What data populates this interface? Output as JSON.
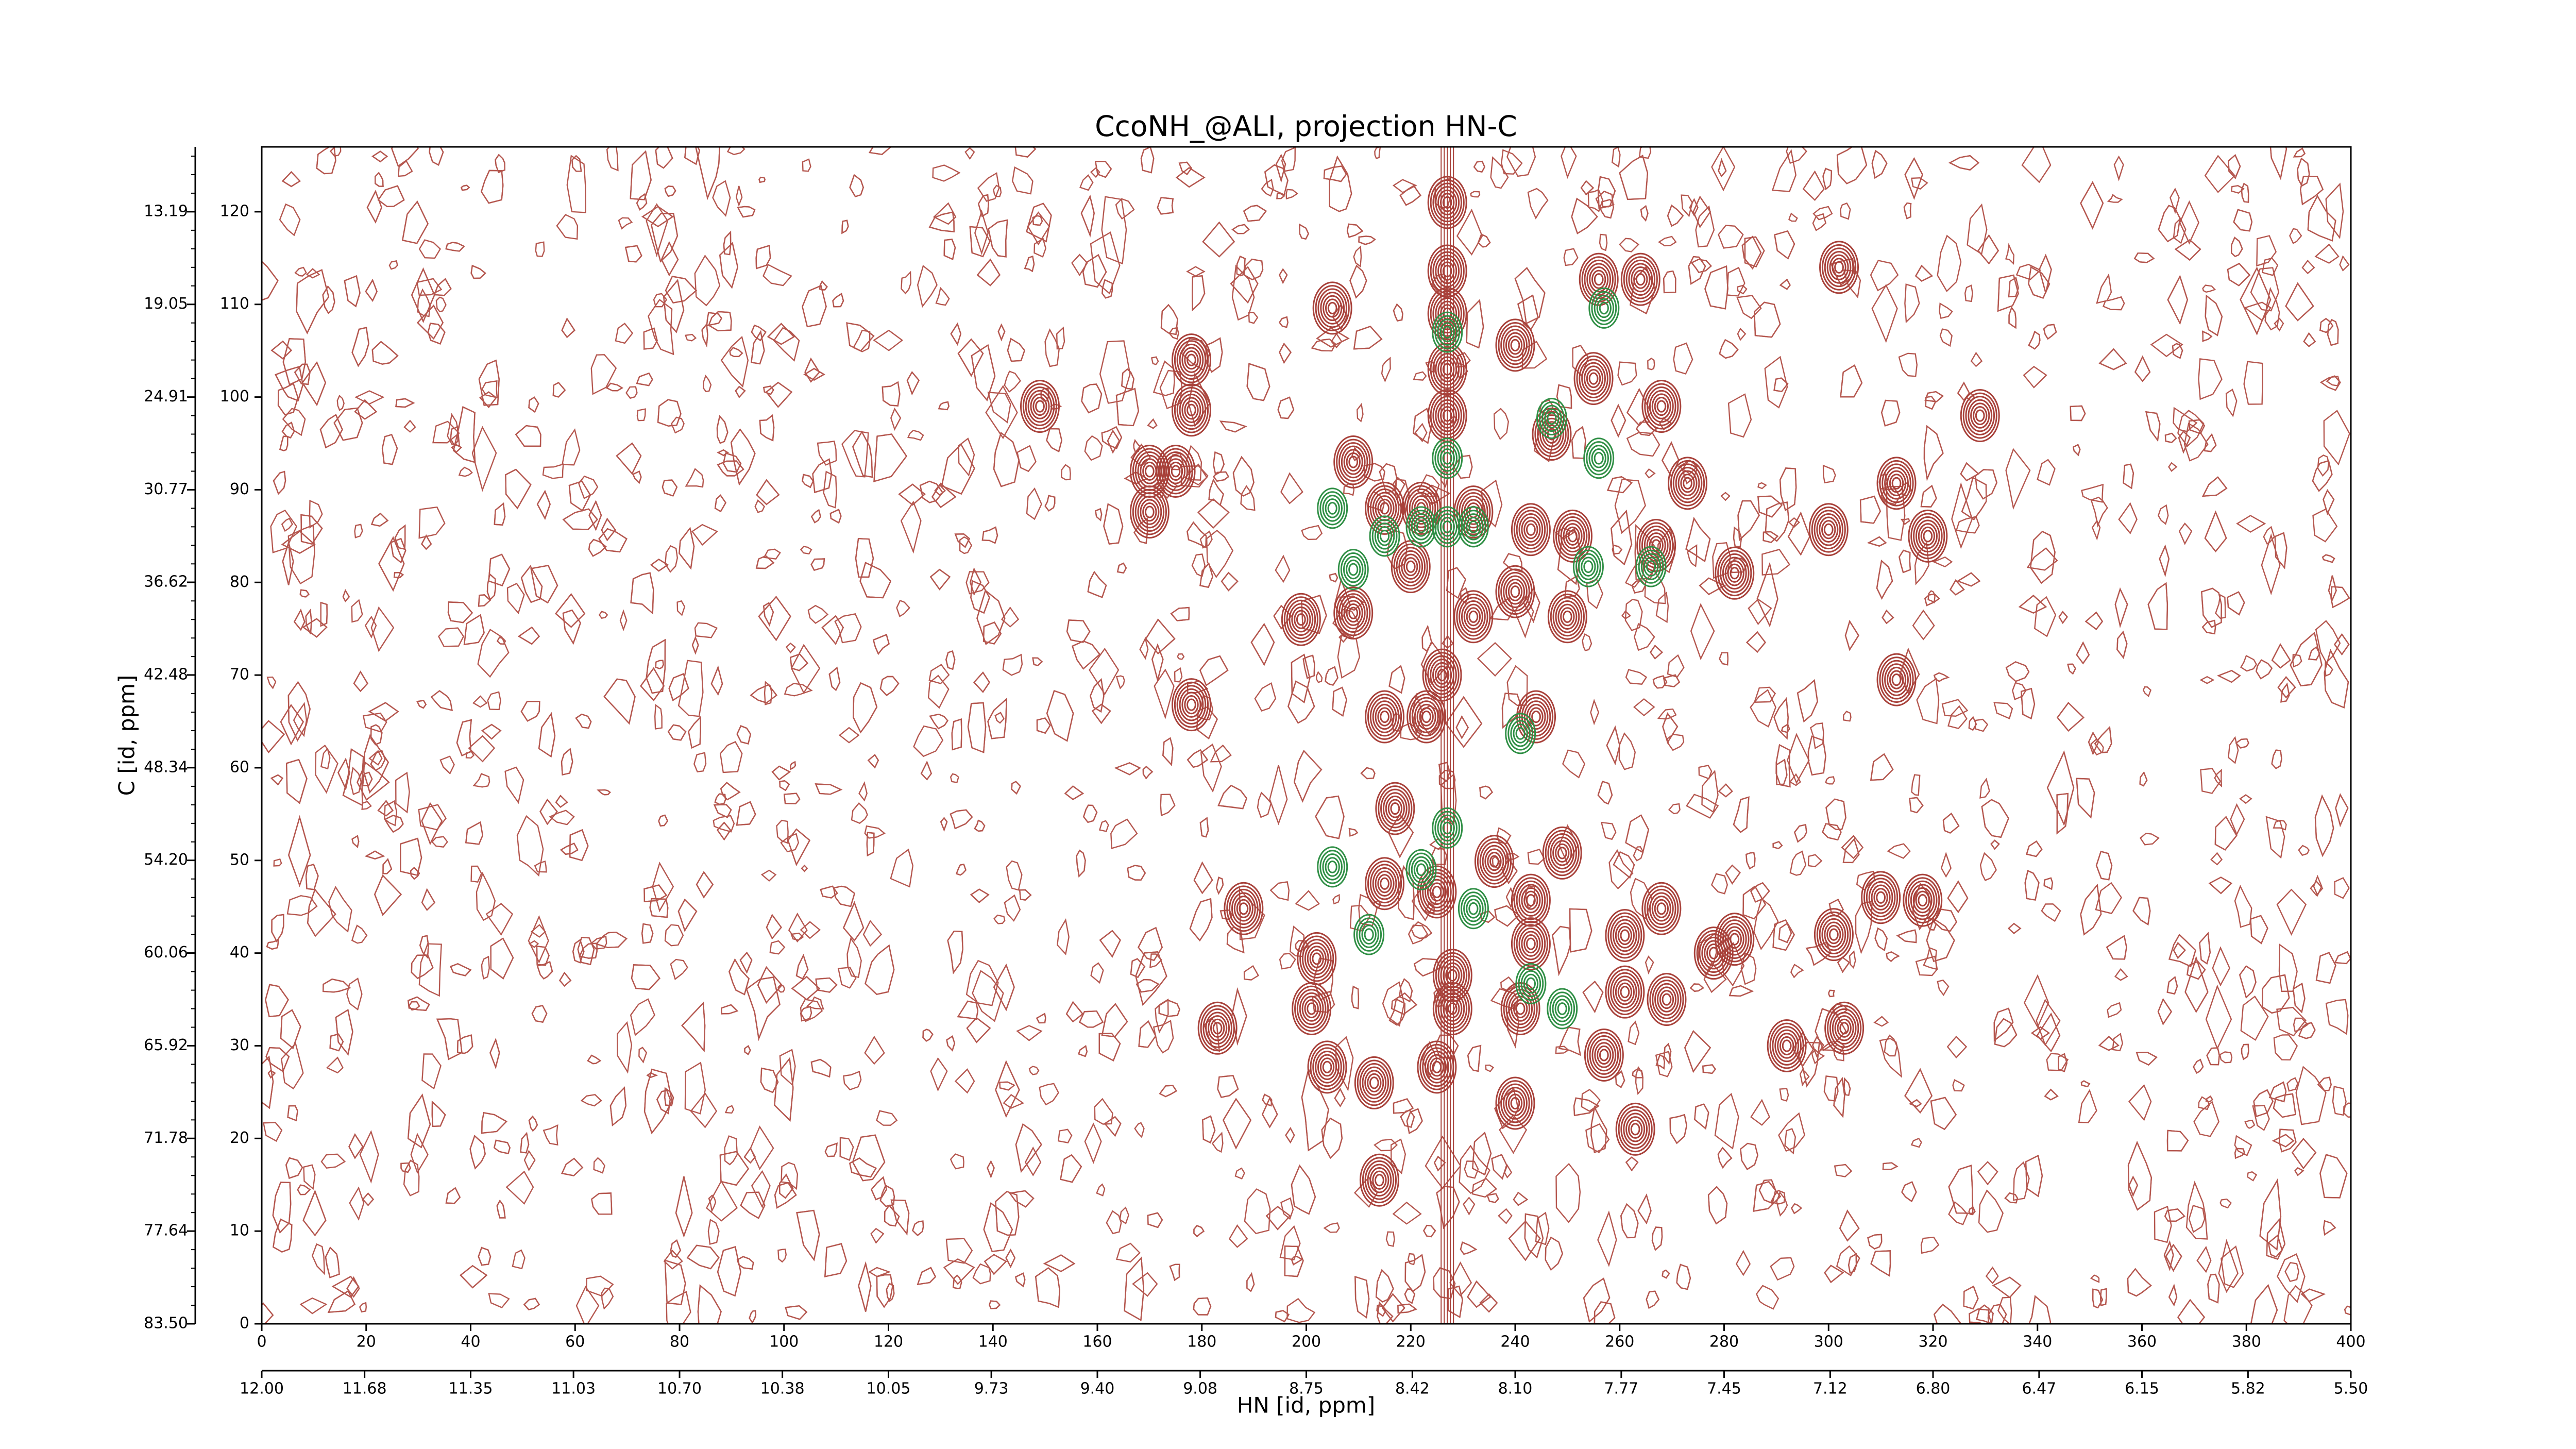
{
  "chart_data": {
    "type": "contour",
    "title": "CcoNH_@ALI, projection HN-C",
    "xlabel": "HN [id, ppm]",
    "ylabel": "C [id, ppm]",
    "xlim": [
      0,
      400
    ],
    "xticks": [
      0,
      20,
      40,
      60,
      80,
      100,
      120,
      140,
      160,
      180,
      200,
      220,
      240,
      260,
      280,
      300,
      320,
      340,
      360,
      380,
      400
    ],
    "x2lim": [
      12,
      5.5
    ],
    "x2ticks": [
      {
        "value": 12,
        "label": "12.00"
      },
      11.68,
      11.35,
      11.03,
      {
        "value": 10.7,
        "label": "10.70"
      },
      10.38,
      10.05,
      9.73,
      {
        "value": 9.4,
        "label": "9.40"
      },
      9.08,
      8.75,
      8.42,
      {
        "value": 8.1,
        "label": "8.10"
      },
      7.77,
      7.45,
      7.12,
      {
        "value": 6.8,
        "label": "6.80"
      },
      6.47,
      6.15,
      5.82,
      {
        "value": 5.5,
        "label": "5.50"
      }
    ],
    "ylim": [
      0,
      127
    ],
    "yticks": [
      0,
      10,
      20,
      30,
      40,
      50,
      60,
      70,
      80,
      90,
      100,
      110,
      120
    ],
    "y2lim": [
      83.5,
      9.09
    ],
    "y2ticks": [
      {
        "value": 83.5,
        "label": "83.50"
      },
      77.64,
      71.78,
      65.92,
      60.06,
      {
        "value": 54.2,
        "label": "54.20"
      },
      48.34,
      42.48,
      36.62,
      30.77,
      24.91,
      19.05,
      13.19
    ],
    "series": [
      {
        "color": "#a8413a",
        "x": [
          227,
          227,
          227,
          227,
          227,
          240,
          256,
          264,
          255,
          268,
          247,
          302,
          329,
          178,
          178,
          149,
          170,
          175,
          170,
          209,
          205,
          215,
          222,
          232,
          243,
          251,
          267,
          273,
          282,
          300,
          313,
          319,
          199,
          209,
          220,
          232,
          240,
          250,
          226,
          215,
          223,
          244,
          178,
          313,
          217,
          236,
          249,
          310,
          215,
          225,
          243,
          243,
          261,
          282,
          301,
          318,
          268,
          202,
          228,
          201,
          228,
          241,
          261,
          269,
          213,
          240,
          257,
          263,
          214,
          183,
          303,
          292,
          204,
          225,
          188,
          278
        ],
        "y": [
          121,
          113.6,
          109,
          103,
          98,
          105.6,
          112.7,
          112.7,
          102,
          99,
          96,
          114,
          98,
          104,
          98.6,
          99,
          92,
          92,
          87.6,
          93,
          109.6,
          88,
          88,
          87.6,
          85.7,
          85,
          84,
          90.7,
          81,
          85.7,
          90.7,
          85,
          76,
          76.7,
          81.7,
          76.3,
          79,
          76.3,
          70,
          65.5,
          65.5,
          65.5,
          66.8,
          69.5,
          55.6,
          49.9,
          50.8,
          46,
          47.5,
          46.6,
          45.7,
          41,
          41.9,
          41.5,
          42,
          45.7,
          44.8,
          39.4,
          37.6,
          34,
          34,
          34,
          35.8,
          35,
          26,
          23.8,
          29,
          21,
          15.5,
          31.9,
          31.9,
          30,
          27.7,
          27.7,
          44.8,
          40
        ]
      },
      {
        "color": "#2f8f45",
        "x": [
          227,
          227,
          227,
          222,
          232,
          215,
          205,
          241,
          227,
          205,
          222,
          232,
          243,
          249,
          212,
          257,
          247,
          256,
          266,
          254,
          209
        ],
        "y": [
          107,
          93.4,
          86,
          86,
          86,
          85,
          88,
          63.7,
          53.5,
          49.3,
          49,
          44.8,
          36.7,
          34,
          42,
          109.6,
          97.7,
          93.4,
          81.7,
          81.7,
          81.4
        ]
      }
    ]
  }
}
